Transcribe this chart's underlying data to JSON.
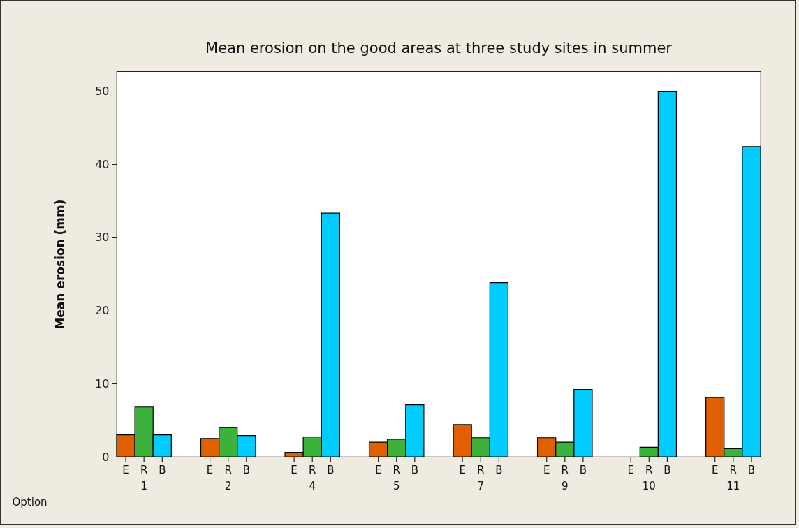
{
  "chart_data": {
    "type": "bar",
    "title": "Mean erosion on the good areas at three  study sites in summer",
    "xlabel": "Option",
    "ylabel": "Mean erosion (mm)",
    "categories": [
      "1",
      "2",
      "4",
      "5",
      "7",
      "9",
      "10",
      "11"
    ],
    "series": [
      {
        "name": "E",
        "color": "#e06000",
        "values": [
          3.0,
          2.5,
          0.6,
          2.0,
          4.4,
          2.6,
          null,
          8.1
        ]
      },
      {
        "name": "R",
        "color": "#3cb23c",
        "values": [
          6.8,
          4.0,
          2.7,
          2.4,
          2.6,
          2.0,
          1.3,
          1.1
        ]
      },
      {
        "name": "B",
        "color": "#00ccff",
        "values": [
          3.0,
          2.9,
          33.3,
          7.1,
          23.8,
          9.2,
          49.9,
          42.4
        ]
      }
    ],
    "ylim": [
      0,
      52.7
    ],
    "yticks": [
      0,
      10,
      20,
      30,
      40,
      50
    ]
  }
}
